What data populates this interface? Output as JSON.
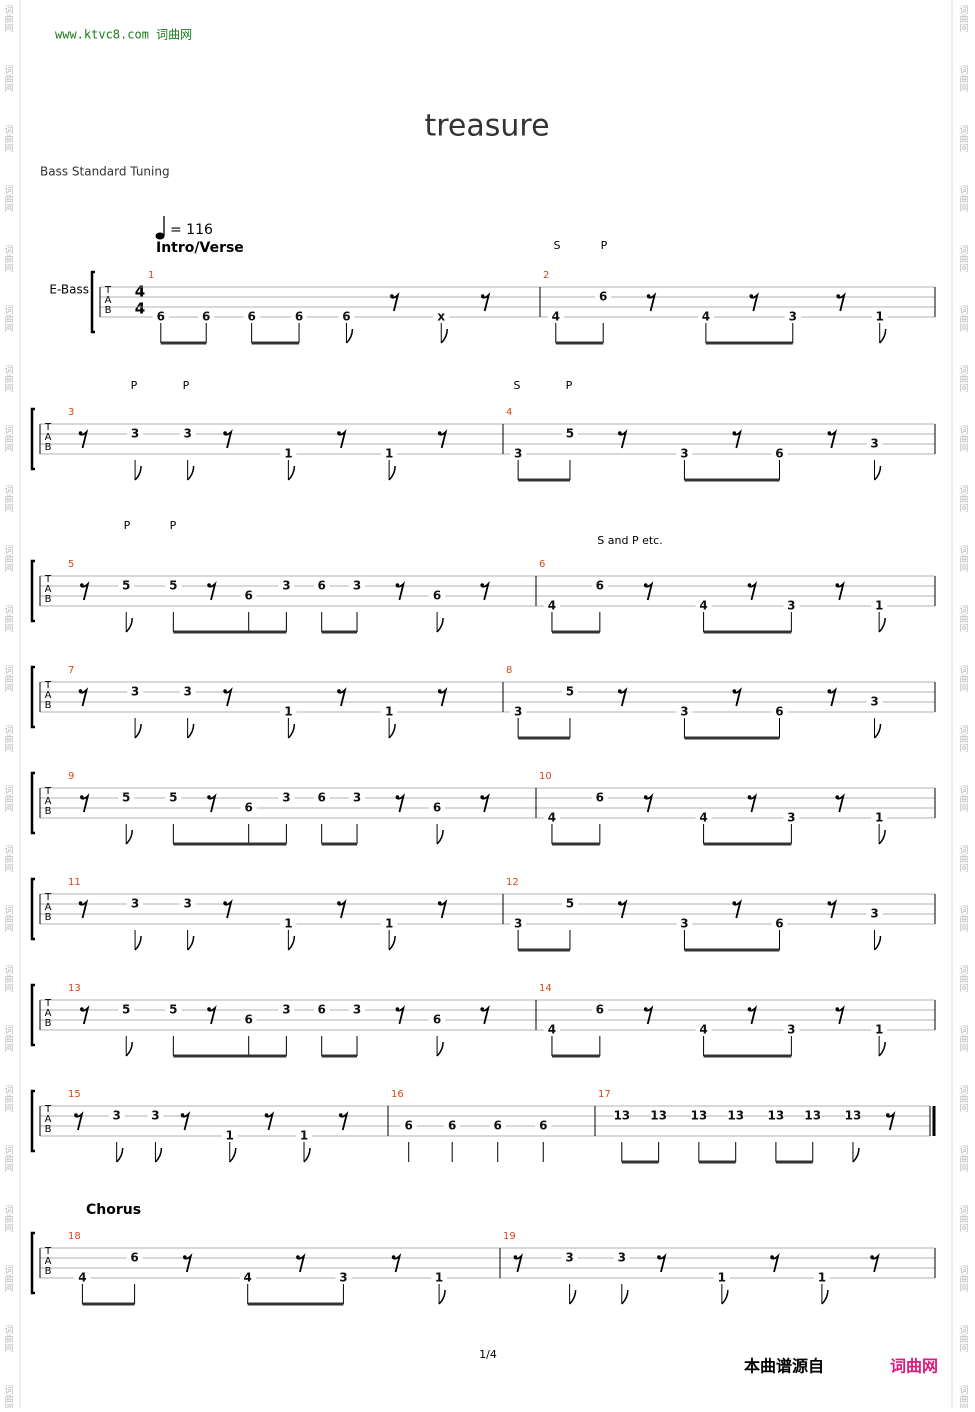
{
  "header": {
    "url": "www.ktvc8.com 词曲网"
  },
  "title": "treasure",
  "tuning": "Bass Standard Tuning",
  "tempo": "= 116",
  "instrument": "E-Bass",
  "time_signature": {
    "top": 4,
    "bottom": 4
  },
  "tab_letters": [
    "T",
    "A",
    "B"
  ],
  "sections": [
    {
      "label": "Intro/Verse"
    },
    {
      "label": "Chorus"
    }
  ],
  "measures": [
    {
      "number": 1,
      "notes": [
        "6",
        "6",
        "6",
        "6",
        "6",
        "x"
      ]
    },
    {
      "number": 2,
      "notes": [
        "4",
        "6",
        "4",
        "3",
        "1"
      ],
      "annotations": [
        "S",
        "P"
      ]
    },
    {
      "number": 3,
      "notes": [
        "3",
        "3",
        "1",
        "1"
      ],
      "annotations": [
        "P",
        "P"
      ]
    },
    {
      "number": 4,
      "notes": [
        "3",
        "5",
        "3",
        "6",
        "3"
      ],
      "annotations": [
        "S",
        "P"
      ]
    },
    {
      "number": 5,
      "notes": [
        "5",
        "5",
        "6",
        "3",
        "6",
        "3",
        "6"
      ],
      "annotations": [
        "P",
        "P"
      ]
    },
    {
      "number": 6,
      "notes": [
        "4",
        "6",
        "4",
        "3",
        "1"
      ],
      "annotations": [
        "S and P etc."
      ]
    },
    {
      "number": 7,
      "notes": [
        "3",
        "3",
        "1",
        "1"
      ]
    },
    {
      "number": 8,
      "notes": [
        "3",
        "5",
        "3",
        "6",
        "3"
      ]
    },
    {
      "number": 9,
      "notes": [
        "5",
        "5",
        "6",
        "3",
        "6",
        "3",
        "6"
      ]
    },
    {
      "number": 10,
      "notes": [
        "4",
        "6",
        "4",
        "3",
        "1"
      ]
    },
    {
      "number": 11,
      "notes": [
        "3",
        "3",
        "1",
        "1"
      ]
    },
    {
      "number": 12,
      "notes": [
        "3",
        "5",
        "3",
        "6",
        "3"
      ]
    },
    {
      "number": 13,
      "notes": [
        "5",
        "5",
        "6",
        "3",
        "6",
        "3",
        "6"
      ]
    },
    {
      "number": 14,
      "notes": [
        "4",
        "6",
        "4",
        "3",
        "1"
      ]
    },
    {
      "number": 15,
      "notes": [
        "3",
        "3",
        "1",
        "1"
      ]
    },
    {
      "number": 16,
      "notes": [
        "6",
        "6",
        "6",
        "6"
      ]
    },
    {
      "number": 17,
      "notes": [
        "13",
        "13",
        "13",
        "13",
        "13",
        "13",
        "13"
      ]
    },
    {
      "number": 18,
      "notes": [
        "4",
        "6",
        "4",
        "3",
        "1"
      ]
    },
    {
      "number": 19,
      "notes": [
        "3",
        "3",
        "1",
        "1"
      ]
    }
  ],
  "footer": {
    "page": "1/4",
    "source": "本曲谱源自",
    "site": "词曲网"
  },
  "watermark": "词曲网"
}
